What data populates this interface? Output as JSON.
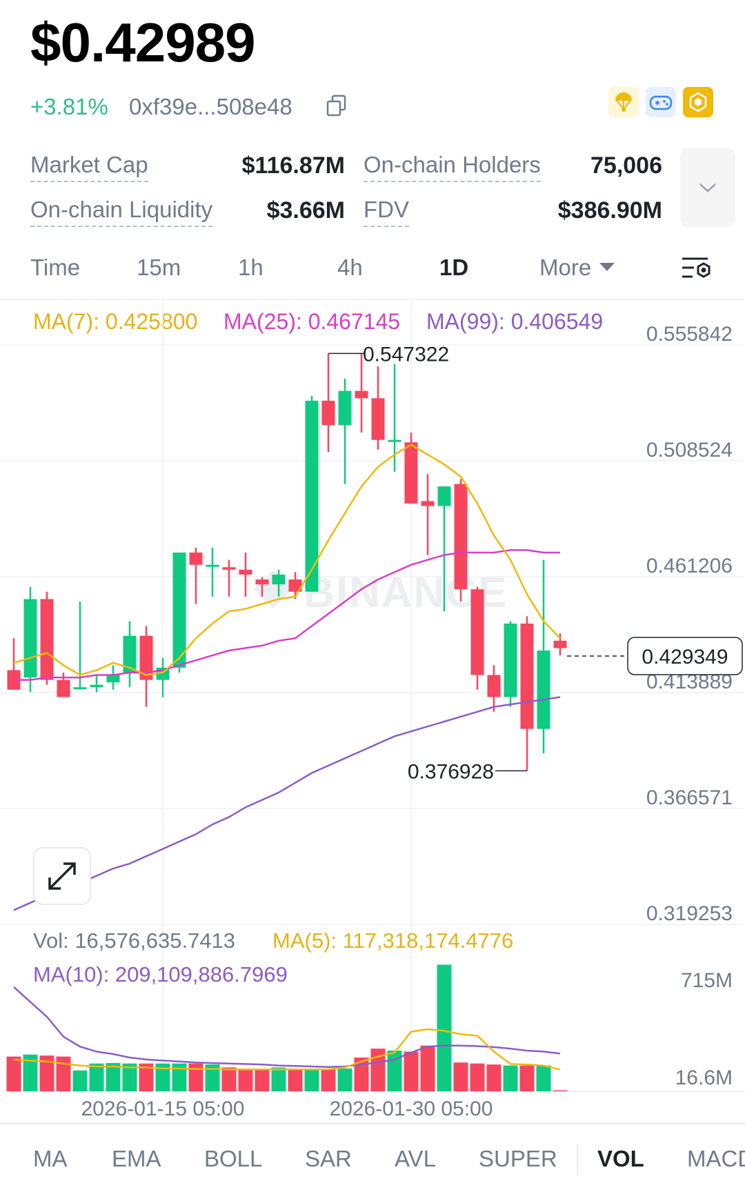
{
  "header": {
    "price": "$0.42989",
    "change": "+3.81%",
    "address": "0xf39e...508e48"
  },
  "icons": [
    "copy-icon",
    "parachute-icon",
    "gamepad-icon",
    "bnb-chain-icon",
    "chevron-down-icon",
    "chart-settings-icon",
    "expand-arrows-icon"
  ],
  "stats": {
    "market_cap_label": "Market Cap",
    "market_cap_value": "$116.87M",
    "holders_label": "On-chain Holders",
    "holders_value": "75,006",
    "liquidity_label": "On-chain Liquidity",
    "liquidity_value": "$3.66M",
    "fdv_label": "FDV",
    "fdv_value": "$386.90M"
  },
  "timeframes": {
    "time": "Time",
    "m15": "15m",
    "h1": "1h",
    "h4": "4h",
    "d1": "1D",
    "more": "More",
    "active": "1D"
  },
  "indicators_main": {
    "ma7": "MA(7): 0.425800",
    "ma25": "MA(25): 0.467145",
    "ma99": "MA(99): 0.406549"
  },
  "indicators_volume": {
    "vol": "Vol: 16,576,635.7413",
    "ma5": "MA(5): 117,318,174.4776",
    "ma10": "MA(10): 209,109,886.7969"
  },
  "colors": {
    "up": "#0ecb81",
    "down": "#f6465d",
    "ma7": "#f0b90b",
    "ma25": "#d83ec6",
    "ma99": "#8b5cc8",
    "change": "#2ebd85"
  },
  "chart_data": {
    "type": "candlestick",
    "watermark": "BINANCE",
    "price_axis": [
      "0.555842",
      "0.508524",
      "0.461206",
      "0.413889",
      "0.366571",
      "0.319253"
    ],
    "ylim": [
      0.319253,
      0.555842
    ],
    "current_price": "0.429349",
    "high_label": "0.547322",
    "low_label": "0.376928",
    "volume_axis": [
      "715M",
      "16.6M"
    ],
    "x_labels": [
      "2026-01-15 05:00",
      "2026-01-30 05:00"
    ],
    "candles": [
      {
        "o": 0.418,
        "h": 0.431,
        "l": 0.411,
        "c": 0.41
      },
      {
        "o": 0.415,
        "h": 0.452,
        "l": 0.409,
        "c": 0.447
      },
      {
        "o": 0.447,
        "h": 0.45,
        "l": 0.412,
        "c": 0.414
      },
      {
        "o": 0.414,
        "h": 0.417,
        "l": 0.409,
        "c": 0.407
      },
      {
        "o": 0.411,
        "h": 0.446,
        "l": 0.411,
        "c": 0.411
      },
      {
        "o": 0.411,
        "h": 0.416,
        "l": 0.409,
        "c": 0.412
      },
      {
        "o": 0.413,
        "h": 0.42,
        "l": 0.41,
        "c": 0.416
      },
      {
        "o": 0.417,
        "h": 0.438,
        "l": 0.411,
        "c": 0.432
      },
      {
        "o": 0.432,
        "h": 0.436,
        "l": 0.403,
        "c": 0.414
      },
      {
        "o": 0.414,
        "h": 0.423,
        "l": 0.407,
        "c": 0.419
      },
      {
        "o": 0.419,
        "h": 0.466,
        "l": 0.417,
        "c": 0.466
      },
      {
        "o": 0.466,
        "h": 0.468,
        "l": 0.445,
        "c": 0.461
      },
      {
        "o": 0.461,
        "h": 0.468,
        "l": 0.448,
        "c": 0.461
      },
      {
        "o": 0.46,
        "h": 0.463,
        "l": 0.448,
        "c": 0.459
      },
      {
        "o": 0.459,
        "h": 0.466,
        "l": 0.448,
        "c": 0.457
      },
      {
        "o": 0.455,
        "h": 0.456,
        "l": 0.448,
        "c": 0.453
      },
      {
        "o": 0.453,
        "h": 0.459,
        "l": 0.448,
        "c": 0.457
      },
      {
        "o": 0.455,
        "h": 0.458,
        "l": 0.447,
        "c": 0.45
      },
      {
        "o": 0.45,
        "h": 0.53,
        "l": 0.45,
        "c": 0.528
      },
      {
        "o": 0.528,
        "h": 0.5473,
        "l": 0.507,
        "c": 0.518
      },
      {
        "o": 0.518,
        "h": 0.537,
        "l": 0.494,
        "c": 0.532
      },
      {
        "o": 0.532,
        "h": 0.5473,
        "l": 0.515,
        "c": 0.529
      },
      {
        "o": 0.529,
        "h": 0.542,
        "l": 0.508,
        "c": 0.512
      },
      {
        "o": 0.512,
        "h": 0.543,
        "l": 0.499,
        "c": 0.512
      },
      {
        "o": 0.511,
        "h": 0.515,
        "l": 0.486,
        "c": 0.486
      },
      {
        "o": 0.487,
        "h": 0.498,
        "l": 0.465,
        "c": 0.485
      },
      {
        "o": 0.485,
        "h": 0.493,
        "l": 0.442,
        "c": 0.493
      },
      {
        "o": 0.494,
        "h": 0.496,
        "l": 0.446,
        "c": 0.451
      },
      {
        "o": 0.451,
        "h": 0.452,
        "l": 0.41,
        "c": 0.416
      },
      {
        "o": 0.416,
        "h": 0.42,
        "l": 0.401,
        "c": 0.407
      },
      {
        "o": 0.407,
        "h": 0.438,
        "l": 0.403,
        "c": 0.437
      },
      {
        "o": 0.437,
        "h": 0.44,
        "l": 0.3769,
        "c": 0.394
      },
      {
        "o": 0.394,
        "h": 0.463,
        "l": 0.384,
        "c": 0.426
      },
      {
        "o": 0.43,
        "h": 0.433,
        "l": 0.424,
        "c": 0.427
      }
    ],
    "ma7": [
      0.421,
      0.423,
      0.425,
      0.42,
      0.416,
      0.418,
      0.421,
      0.419,
      0.416,
      0.417,
      0.423,
      0.431,
      0.437,
      0.442,
      0.443,
      0.445,
      0.447,
      0.448,
      0.459,
      0.471,
      0.482,
      0.493,
      0.501,
      0.506,
      0.51,
      0.506,
      0.502,
      0.497,
      0.486,
      0.473,
      0.463,
      0.449,
      0.438,
      0.431
    ],
    "ma25": [
      0.414,
      0.414,
      0.415,
      0.415,
      0.415,
      0.416,
      0.416,
      0.417,
      0.417,
      0.418,
      0.42,
      0.422,
      0.424,
      0.426,
      0.427,
      0.428,
      0.43,
      0.431,
      0.436,
      0.441,
      0.446,
      0.451,
      0.455,
      0.458,
      0.461,
      0.463,
      0.465,
      0.466,
      0.466,
      0.466,
      0.467,
      0.467,
      0.466,
      0.466
    ],
    "ma99": [
      0.32,
      0.323,
      0.326,
      0.328,
      0.331,
      0.334,
      0.337,
      0.339,
      0.342,
      0.345,
      0.348,
      0.351,
      0.355,
      0.358,
      0.362,
      0.365,
      0.368,
      0.372,
      0.376,
      0.379,
      0.382,
      0.385,
      0.388,
      0.391,
      0.393,
      0.395,
      0.397,
      0.399,
      0.401,
      0.403,
      0.404,
      0.405,
      0.406,
      0.407
    ],
    "volumes": [
      70,
      74,
      72,
      70,
      42,
      56,
      57,
      56,
      56,
      56,
      56,
      56,
      54,
      48,
      44,
      44,
      48,
      44,
      44,
      44,
      46,
      68,
      86,
      82,
      80,
      92,
      255,
      58,
      56,
      54,
      52,
      52,
      52,
      2
    ],
    "vol_ma5": [
      64,
      62,
      60,
      56,
      52,
      50,
      50,
      48,
      48,
      46,
      46,
      45,
      45,
      44,
      44,
      44,
      44,
      44,
      44,
      44,
      48,
      60,
      70,
      78,
      120,
      125,
      122,
      115,
      112,
      80,
      55,
      54,
      52,
      44
    ],
    "vol_ma10": [
      210,
      180,
      150,
      110,
      90,
      80,
      75,
      68,
      64,
      62,
      60,
      58,
      57,
      56,
      55,
      54,
      52,
      51,
      50,
      49,
      50,
      54,
      58,
      64,
      78,
      90,
      92,
      92,
      91,
      89,
      86,
      82,
      80,
      76
    ]
  },
  "bottom_tabs": {
    "ma": "MA",
    "ema": "EMA",
    "boll": "BOLL",
    "sar": "SAR",
    "avl": "AVL",
    "super": "SUPER",
    "vol": "VOL",
    "more": "MACD"
  }
}
